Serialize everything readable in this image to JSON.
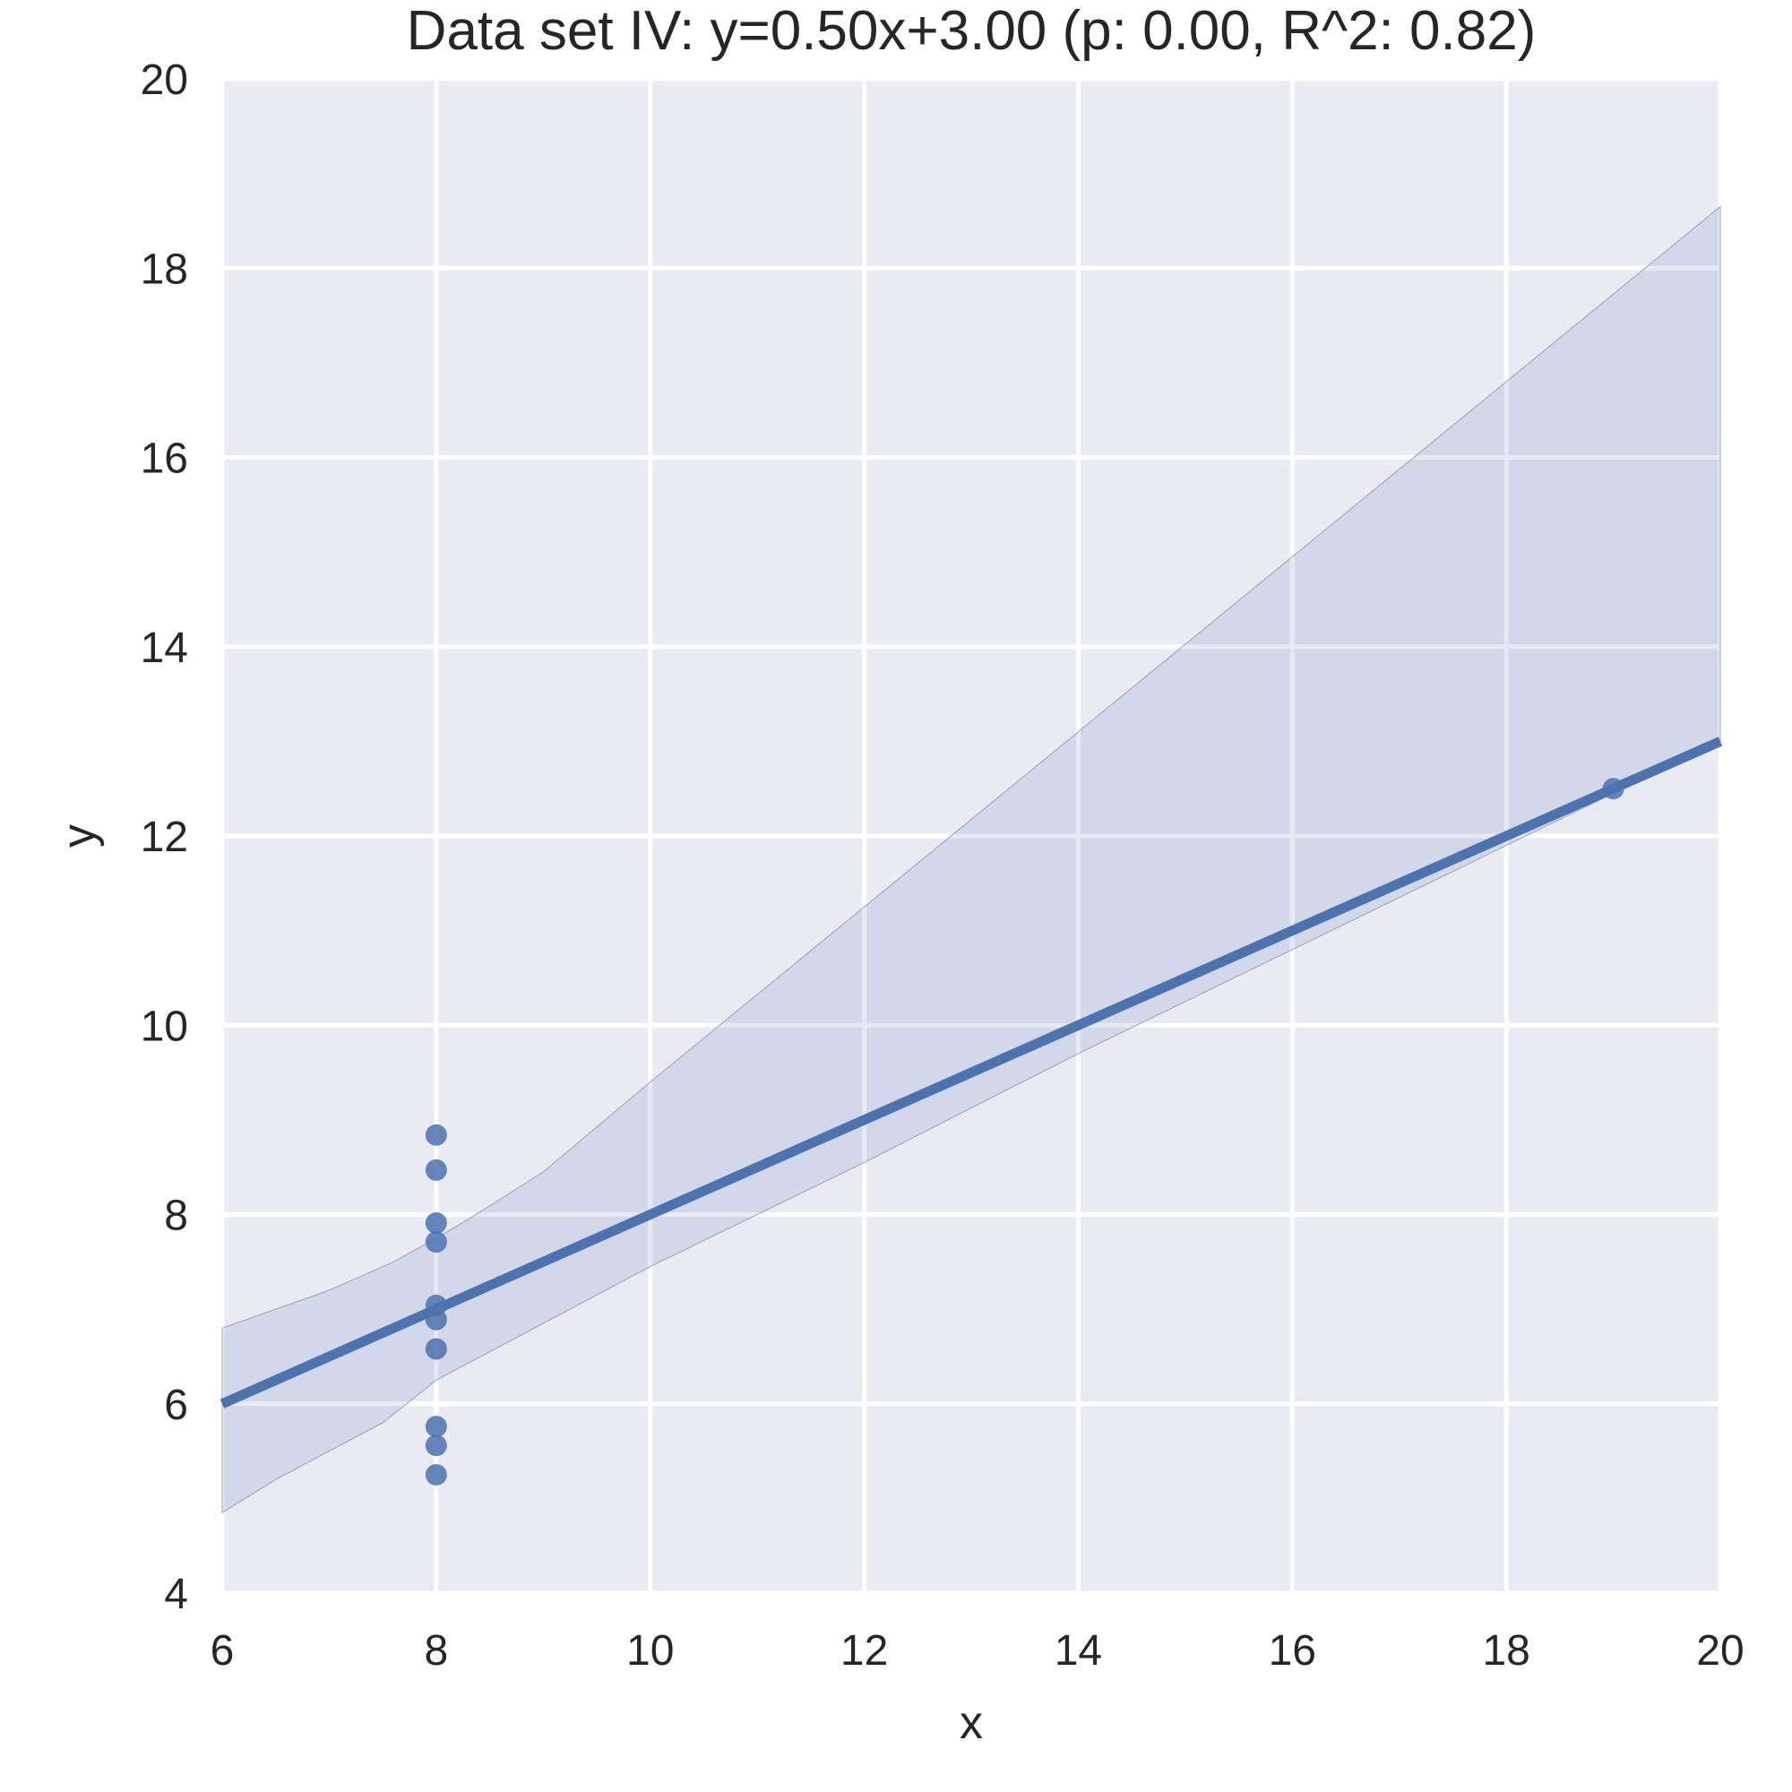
{
  "chart_data": {
    "type": "scatter",
    "title": "Data set IV: y=0.50x+3.00 (p: 0.00, R^2: 0.82)",
    "xlabel": "x",
    "ylabel": "y",
    "xlim": [
      6,
      20
    ],
    "ylim": [
      4,
      20
    ],
    "xticks": [
      6,
      8,
      10,
      12,
      14,
      16,
      18,
      20
    ],
    "yticks": [
      4,
      6,
      8,
      10,
      12,
      14,
      16,
      18,
      20
    ],
    "grid": true,
    "series": [
      {
        "points": [
          {
            "x": 8,
            "y": 8.84
          },
          {
            "x": 8,
            "y": 8.47
          },
          {
            "x": 8,
            "y": 7.91
          },
          {
            "x": 8,
            "y": 7.71
          },
          {
            "x": 8,
            "y": 7.04
          },
          {
            "x": 8,
            "y": 6.89
          },
          {
            "x": 8,
            "y": 6.58
          },
          {
            "x": 8,
            "y": 5.76
          },
          {
            "x": 8,
            "y": 5.56
          },
          {
            "x": 8,
            "y": 5.25
          },
          {
            "x": 19,
            "y": 12.5
          }
        ]
      }
    ],
    "regression_line": {
      "slope": 0.5,
      "intercept": 3.0,
      "x_range": [
        6,
        20
      ]
    },
    "confidence_band": {
      "upper": [
        [
          6,
          6.8
        ],
        [
          7,
          7.2
        ],
        [
          7.6,
          7.5
        ],
        [
          8,
          7.75
        ],
        [
          8.3,
          7.95
        ],
        [
          9,
          8.45
        ],
        [
          10,
          9.4
        ],
        [
          12,
          11.25
        ],
        [
          14,
          13.1
        ],
        [
          16,
          14.95
        ],
        [
          18,
          16.8
        ],
        [
          20,
          18.65
        ]
      ],
      "lower": [
        [
          6,
          4.85
        ],
        [
          6.5,
          5.2
        ],
        [
          7,
          5.5
        ],
        [
          7.5,
          5.8
        ],
        [
          8,
          6.25
        ],
        [
          9,
          6.85
        ],
        [
          10,
          7.45
        ],
        [
          12,
          8.55
        ],
        [
          14,
          9.7
        ],
        [
          16,
          10.8
        ],
        [
          18,
          11.9
        ],
        [
          19,
          12.45
        ],
        [
          20,
          13.0
        ]
      ]
    },
    "colors": {
      "background": "#eaeaf2",
      "grid": "#ffffff",
      "series": "#4c72b0",
      "band": "#4c72b0"
    }
  }
}
